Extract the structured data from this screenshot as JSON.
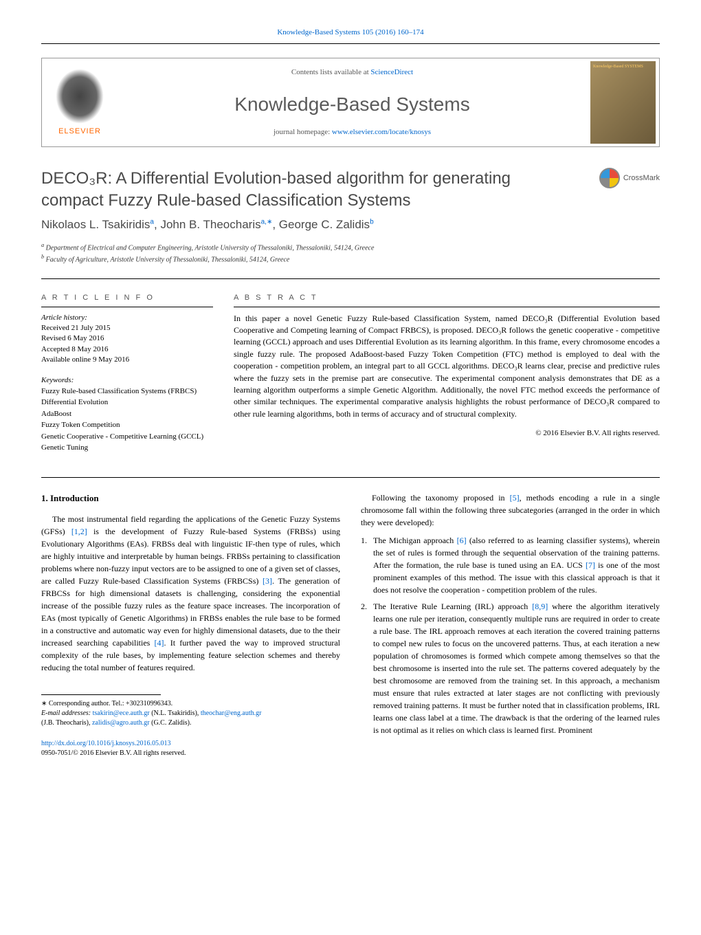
{
  "header": {
    "citation_prefix": "Knowledge-Based Systems",
    "citation_volume": "105 (2016) 160–174",
    "contents_prefix": "Contents lists available at ",
    "contents_link": "ScienceDirect",
    "journal_name": "Knowledge-Based Systems",
    "homepage_prefix": "journal homepage: ",
    "homepage_link": "www.elsevier.com/locate/knosys",
    "elsevier": "ELSEVIER",
    "cover_label": "Knowledge-Based SYSTEMS"
  },
  "crossmark": "CrossMark",
  "title_line1": "DECO₃R: A Differential Evolution-based algorithm for generating",
  "title_line2": "compact Fuzzy Rule-based Classification Systems",
  "authors_html": "Nikolaos L. Tsakiridisᵃ, John B. Theocharisᵃ٫*, George C. Zalidisᵇ",
  "author1": "Nikolaos L. Tsakiridis",
  "author1_sup": "a",
  "author2": "John B. Theocharis",
  "author2_sup": "a,∗",
  "author3": "George C. Zalidis",
  "author3_sup": "b",
  "affiliations": {
    "a": "Department of Electrical and Computer Engineering, Aristotle University of Thessaloniki, Thessaloniki, 54124, Greece",
    "b": "Faculty of Agriculture, Aristotle University of Thessaloniki, Thessaloniki, 54124, Greece"
  },
  "article_info": {
    "heading": "A R T I C L E   I N F O",
    "history_label": "Article history:",
    "received": "Received 21 July 2015",
    "revised": "Revised 6 May 2016",
    "accepted": "Accepted 8 May 2016",
    "online": "Available online 9 May 2016",
    "keywords_label": "Keywords:",
    "keywords": [
      "Fuzzy Rule-based Classification Systems (FRBCS)",
      "Differential Evolution",
      "AdaBoost",
      "Fuzzy Token Competition",
      "Genetic Cooperative - Competitive Learning (GCCL)",
      "Genetic Tuning"
    ]
  },
  "abstract": {
    "heading": "A B S T R A C T",
    "text": "In this paper a novel Genetic Fuzzy Rule-based Classification System, named DECO₃R (Differential Evolution based Cooperative and Competing learning of Compact FRBCS), is proposed. DECO₃R follows the genetic cooperative - competitive learning (GCCL) approach and uses Differential Evolution as its learning algorithm. In this frame, every chromosome encodes a single fuzzy rule. The proposed AdaBoost-based Fuzzy Token Competition (FTC) method is employed to deal with the cooperation - competition problem, an integral part to all GCCL algorithms. DECO₃R learns clear, precise and predictive rules where the fuzzy sets in the premise part are consecutive. The experimental component analysis demonstrates that DE as a learning algorithm outperforms a simple Genetic Algorithm. Additionally, the novel FTC method exceeds the performance of other similar techniques. The experimental comparative analysis highlights the robust performance of DECO₃R compared to other rule learning algorithms, both in terms of accuracy and of structural complexity.",
    "copyright": "© 2016 Elsevier B.V. All rights reserved."
  },
  "intro": {
    "heading": "1. Introduction",
    "p1_a": "The most instrumental field regarding the applications of the Genetic Fuzzy Systems (GFSs) ",
    "p1_ref1": "[1,2]",
    "p1_b": " is the development of Fuzzy Rule-based Systems (FRBSs) using Evolutionary Algorithms (EAs). FRBSs deal with linguistic IF-then type of rules, which are highly intuitive and interpretable by human beings. FRBSs pertaining to classification problems where non-fuzzy input vectors are to be assigned to one of a given set of classes, are called Fuzzy Rule-based Classification Systems (FRBCSs) ",
    "p1_ref2": "[3]",
    "p1_c": ". The generation of FRBCSs for high dimensional datasets is challenging, considering the exponential increase of the possible fuzzy rules as the feature space increases. The incorporation of EAs (most typically of Genetic Algorithms) in FRBSs enables the rule base to be formed in a constructive and automatic way even for highly dimensional datasets, due to the their increased searching capabilities ",
    "p1_ref3": "[4]",
    "p1_d": ". It further paved the way to improved structural complexity of the rule bases, by implementing feature selection schemes and thereby reducing the total number of features required."
  },
  "col2": {
    "p1_a": "Following the taxonomy proposed in ",
    "p1_ref1": "[5]",
    "p1_b": ", methods encoding a rule in a single chromosome fall within the following three subcategories (arranged in the order in which they were developed):",
    "item1_a": "The Michigan approach ",
    "item1_ref": "[6]",
    "item1_b": " (also referred to as learning classifier systems), wherein the set of rules is formed through the sequential observation of the training patterns. After the formation, the rule base is tuned using an EA. UCS ",
    "item1_ref2": "[7]",
    "item1_c": " is one of the most prominent examples of this method. The issue with this classical approach is that it does not resolve the cooperation - competition problem of the rules.",
    "item2_a": "The Iterative Rule Learning (IRL) approach ",
    "item2_ref": "[8,9]",
    "item2_b": " where the algorithm iteratively learns one rule per iteration, consequently multiple runs are required in order to create a rule base. The IRL approach removes at each iteration the covered training patterns to compel new rules to focus on the uncovered patterns. Thus, at each iteration a new population of chromosomes is formed which compete among themselves so that the best chromosome is inserted into the rule set. The patterns covered adequately by the best chromosome are removed from the training set. In this approach, a mechanism must ensure that rules extracted at later stages are not conflicting with previously removed training patterns. It must be further noted that in classification problems, IRL learns one class label at a time. The drawback is that the ordering of the learned rules is not optimal as it relies on which class is learned first. Prominent"
  },
  "footnotes": {
    "corr": "∗ Corresponding author. Tel.: +302310996343.",
    "email_label": "E-mail addresses: ",
    "email1": "tsakirin@ece.auth.gr",
    "email1_name": " (N.L. Tsakiridis), ",
    "email2": "theochar@eng.auth.gr",
    "email2_name": " (J.B. Theocharis), ",
    "email3": "zalidis@agro.auth.gr",
    "email3_name": " (G.C. Zalidis)."
  },
  "doi": {
    "link": "http://dx.doi.org/10.1016/j.knosys.2016.05.013",
    "issn": "0950-7051/© 2016 Elsevier B.V. All rights reserved."
  }
}
